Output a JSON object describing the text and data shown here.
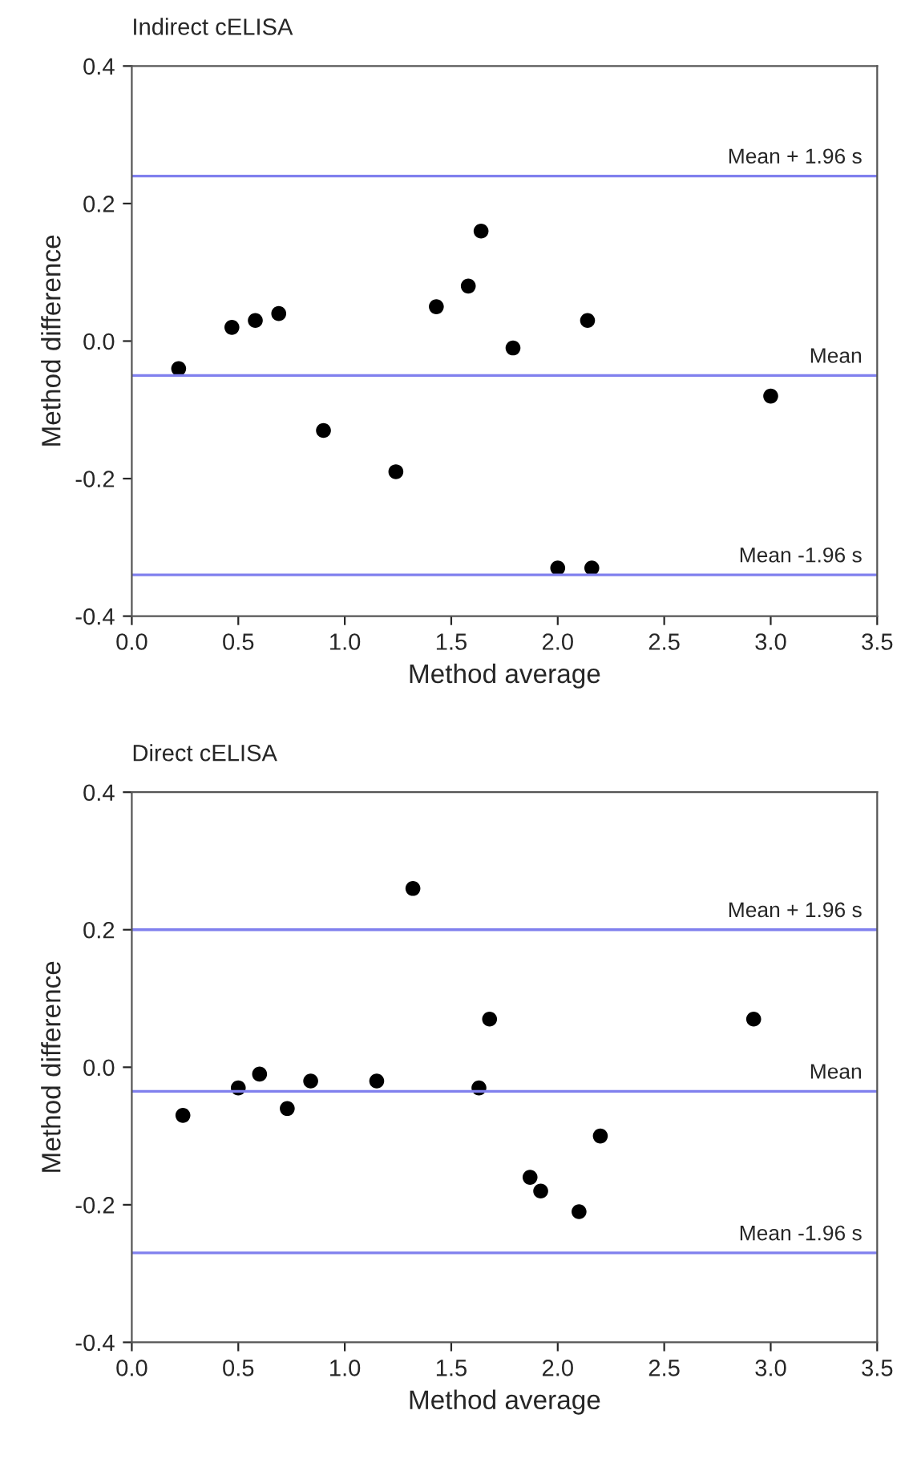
{
  "chart_data": [
    {
      "type": "scatter",
      "title": "Indirect cELISA",
      "xlabel": "Method average",
      "ylabel": "Method difference",
      "x": [
        0.22,
        0.47,
        0.58,
        0.69,
        0.9,
        1.24,
        1.43,
        1.58,
        1.64,
        1.79,
        2.14,
        2.0,
        2.16,
        3.0
      ],
      "series": [
        {
          "color": "#000000",
          "values": [
            -0.04,
            0.02,
            0.03,
            0.04,
            -0.13,
            -0.19,
            0.05,
            0.08,
            0.16,
            -0.01,
            0.03,
            -0.33,
            -0.33,
            -0.08
          ]
        }
      ],
      "marker": "circle",
      "grid": false,
      "legend": false,
      "xlim": [
        0,
        3.5
      ],
      "xticks": [
        {
          "value": 0,
          "label": "0.0"
        },
        0.5,
        {
          "value": 1,
          "label": "1.0"
        },
        1.5,
        {
          "value": 2,
          "label": "2.0"
        },
        2.5,
        {
          "value": 3,
          "label": "3.0"
        },
        3.5
      ],
      "ylim": [
        -0.4,
        0.4
      ],
      "yticks": [
        -0.4,
        -0.2,
        {
          "value": 0,
          "label": "0.0"
        },
        0.2,
        0.4
      ],
      "ref_lines": [
        {
          "axis": "y",
          "value": 0.24,
          "label": "Mean + 1.96 s",
          "color": "#8080ee"
        },
        {
          "axis": "y",
          "value": -0.05,
          "label": "Mean",
          "color": "#8080ee"
        },
        {
          "axis": "y",
          "value": -0.34,
          "label": "Mean -1.96 s",
          "color": "#8080ee"
        }
      ]
    },
    {
      "type": "scatter",
      "title": "Direct cELISA",
      "xlabel": "Method average",
      "ylabel": "Method difference",
      "x": [
        0.24,
        0.5,
        0.6,
        0.73,
        0.84,
        1.15,
        1.32,
        1.63,
        1.68,
        1.87,
        1.92,
        2.1,
        2.2,
        2.92
      ],
      "series": [
        {
          "color": "#000000",
          "values": [
            -0.07,
            -0.03,
            -0.01,
            -0.06,
            -0.02,
            -0.02,
            0.26,
            -0.03,
            0.07,
            -0.16,
            -0.18,
            -0.21,
            -0.1,
            0.07
          ]
        }
      ],
      "marker": "circle",
      "grid": false,
      "legend": false,
      "xlim": [
        0,
        3.5
      ],
      "xticks": [
        {
          "value": 0,
          "label": "0.0"
        },
        0.5,
        {
          "value": 1,
          "label": "1.0"
        },
        1.5,
        {
          "value": 2,
          "label": "2.0"
        },
        2.5,
        {
          "value": 3,
          "label": "3.0"
        },
        3.5
      ],
      "ylim": [
        -0.4,
        0.4
      ],
      "yticks": [
        -0.4,
        -0.2,
        {
          "value": 0,
          "label": "0.0"
        },
        0.2,
        0.4
      ],
      "ref_lines": [
        {
          "axis": "y",
          "value": 0.2,
          "label": "Mean + 1.96 s",
          "color": "#8080ee"
        },
        {
          "axis": "y",
          "value": -0.035,
          "label": "Mean",
          "color": "#8080ee"
        },
        {
          "axis": "y",
          "value": -0.27,
          "label": "Mean -1.96 s",
          "color": "#8080ee"
        }
      ]
    }
  ]
}
